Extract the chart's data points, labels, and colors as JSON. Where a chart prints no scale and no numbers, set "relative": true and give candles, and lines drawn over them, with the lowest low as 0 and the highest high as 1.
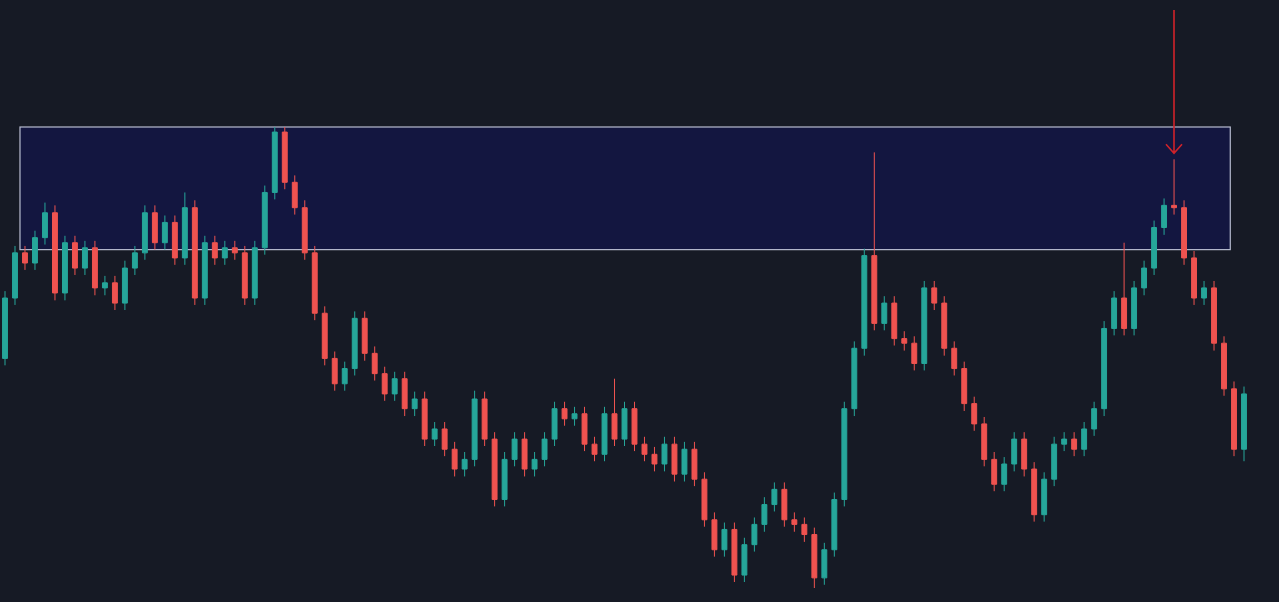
{
  "chart_data": {
    "type": "candlestick",
    "relative": true,
    "categories": [
      null,
      null,
      null,
      null,
      null,
      null,
      null,
      null,
      null,
      null,
      null,
      null,
      null,
      null,
      null,
      null,
      null,
      null,
      null,
      null,
      null,
      null,
      null,
      null,
      null,
      null,
      null,
      null,
      null,
      null,
      null,
      null,
      null,
      null,
      null,
      null,
      null,
      null,
      null,
      null,
      null,
      null,
      null,
      null,
      null,
      null,
      null,
      null,
      null,
      null,
      null,
      null,
      null,
      null,
      null,
      null,
      null,
      null,
      null,
      null,
      null,
      null,
      null,
      null,
      null,
      null,
      null,
      null,
      null,
      null,
      null,
      null,
      null,
      null,
      null,
      null,
      null,
      null,
      null,
      null,
      null,
      null,
      null,
      null,
      null,
      null,
      null,
      null,
      null,
      null,
      null,
      null,
      null,
      null,
      null,
      null,
      null,
      null,
      null,
      null,
      null,
      null,
      null,
      null,
      null,
      null,
      null,
      null,
      null,
      null,
      null,
      null,
      null,
      null,
      null,
      null,
      null,
      null,
      null,
      null,
      null,
      null,
      null,
      null,
      null
    ],
    "ohlc": [
      [
        0.498,
        0.644,
        0.483,
        0.629
      ],
      [
        0.629,
        0.742,
        0.614,
        0.727
      ],
      [
        0.727,
        0.742,
        0.69,
        0.705
      ],
      [
        0.705,
        0.775,
        0.69,
        0.76
      ],
      [
        0.76,
        0.836,
        0.745,
        0.814
      ],
      [
        0.814,
        0.83,
        0.624,
        0.64
      ],
      [
        0.64,
        0.764,
        0.624,
        0.749
      ],
      [
        0.749,
        0.764,
        0.679,
        0.694
      ],
      [
        0.694,
        0.753,
        0.679,
        0.738
      ],
      [
        0.738,
        0.753,
        0.635,
        0.651
      ],
      [
        0.651,
        0.677,
        0.635,
        0.662
      ],
      [
        0.662,
        0.677,
        0.603,
        0.618
      ],
      [
        0.618,
        0.71,
        0.603,
        0.694
      ],
      [
        0.694,
        0.742,
        0.679,
        0.727
      ],
      [
        0.727,
        0.83,
        0.712,
        0.814
      ],
      [
        0.814,
        0.83,
        0.734,
        0.749
      ],
      [
        0.749,
        0.808,
        0.734,
        0.793
      ],
      [
        0.793,
        0.808,
        0.701,
        0.716
      ],
      [
        0.716,
        0.858,
        0.701,
        0.825
      ],
      [
        0.825,
        0.841,
        0.614,
        0.629
      ],
      [
        0.629,
        0.764,
        0.614,
        0.749
      ],
      [
        0.749,
        0.764,
        0.701,
        0.716
      ],
      [
        0.716,
        0.753,
        0.701,
        0.738
      ],
      [
        0.738,
        0.753,
        0.712,
        0.727
      ],
      [
        0.727,
        0.742,
        0.614,
        0.629
      ],
      [
        0.629,
        0.753,
        0.614,
        0.738
      ],
      [
        0.738,
        0.873,
        0.723,
        0.858
      ],
      [
        0.858,
        1.0,
        0.843,
        0.989
      ],
      [
        0.989,
        1.0,
        0.865,
        0.88
      ],
      [
        0.88,
        0.895,
        0.81,
        0.825
      ],
      [
        0.825,
        0.841,
        0.712,
        0.727
      ],
      [
        0.727,
        0.742,
        0.581,
        0.596
      ],
      [
        0.596,
        0.611,
        0.483,
        0.498
      ],
      [
        0.498,
        0.513,
        0.428,
        0.443
      ],
      [
        0.443,
        0.491,
        0.428,
        0.476
      ],
      [
        0.476,
        0.6,
        0.461,
        0.585
      ],
      [
        0.585,
        0.6,
        0.493,
        0.509
      ],
      [
        0.509,
        0.524,
        0.45,
        0.465
      ],
      [
        0.465,
        0.48,
        0.406,
        0.421
      ],
      [
        0.421,
        0.469,
        0.406,
        0.454
      ],
      [
        0.454,
        0.469,
        0.373,
        0.389
      ],
      [
        0.389,
        0.426,
        0.373,
        0.41
      ],
      [
        0.41,
        0.426,
        0.308,
        0.323
      ],
      [
        0.323,
        0.36,
        0.308,
        0.345
      ],
      [
        0.345,
        0.36,
        0.286,
        0.301
      ],
      [
        0.301,
        0.317,
        0.242,
        0.258
      ],
      [
        0.258,
        0.295,
        0.242,
        0.279
      ],
      [
        0.279,
        0.428,
        0.264,
        0.41
      ],
      [
        0.41,
        0.426,
        0.308,
        0.323
      ],
      [
        0.323,
        0.338,
        0.177,
        0.192
      ],
      [
        0.192,
        0.295,
        0.177,
        0.279
      ],
      [
        0.279,
        0.338,
        0.264,
        0.323
      ],
      [
        0.323,
        0.338,
        0.242,
        0.258
      ],
      [
        0.258,
        0.295,
        0.242,
        0.279
      ],
      [
        0.279,
        0.338,
        0.264,
        0.323
      ],
      [
        0.323,
        0.404,
        0.308,
        0.389
      ],
      [
        0.389,
        0.404,
        0.352,
        0.367
      ],
      [
        0.367,
        0.393,
        0.352,
        0.378
      ],
      [
        0.378,
        0.393,
        0.297,
        0.312
      ],
      [
        0.312,
        0.328,
        0.275,
        0.29
      ],
      [
        0.29,
        0.393,
        0.275,
        0.378
      ],
      [
        0.378,
        0.454,
        0.308,
        0.323
      ],
      [
        0.323,
        0.404,
        0.308,
        0.389
      ],
      [
        0.389,
        0.404,
        0.297,
        0.312
      ],
      [
        0.312,
        0.328,
        0.275,
        0.29
      ],
      [
        0.29,
        0.306,
        0.253,
        0.269
      ],
      [
        0.269,
        0.328,
        0.253,
        0.312
      ],
      [
        0.312,
        0.328,
        0.231,
        0.247
      ],
      [
        0.247,
        0.317,
        0.231,
        0.301
      ],
      [
        0.301,
        0.317,
        0.221,
        0.236
      ],
      [
        0.236,
        0.251,
        0.133,
        0.148
      ],
      [
        0.148,
        0.164,
        0.068,
        0.083
      ],
      [
        0.083,
        0.142,
        0.068,
        0.127
      ],
      [
        0.127,
        0.142,
        0.013,
        0.028
      ],
      [
        0.028,
        0.109,
        0.013,
        0.094
      ],
      [
        0.094,
        0.153,
        0.079,
        0.138
      ],
      [
        0.138,
        0.197,
        0.122,
        0.181
      ],
      [
        0.181,
        0.229,
        0.166,
        0.214
      ],
      [
        0.214,
        0.229,
        0.133,
        0.148
      ],
      [
        0.148,
        0.164,
        0.122,
        0.138
      ],
      [
        0.138,
        0.153,
        0.1,
        0.116
      ],
      [
        0.116,
        0.131,
        0.0,
        0.022
      ],
      [
        0.022,
        0.098,
        0.007,
        0.083
      ],
      [
        0.083,
        0.207,
        0.068,
        0.192
      ],
      [
        0.192,
        0.404,
        0.177,
        0.389
      ],
      [
        0.389,
        0.535,
        0.373,
        0.52
      ],
      [
        0.52,
        0.736,
        0.504,
        0.721
      ],
      [
        0.721,
        0.945,
        0.559,
        0.574
      ],
      [
        0.574,
        0.633,
        0.559,
        0.618
      ],
      [
        0.618,
        0.633,
        0.526,
        0.541
      ],
      [
        0.541,
        0.557,
        0.515,
        0.531
      ],
      [
        0.531,
        0.546,
        0.472,
        0.487
      ],
      [
        0.487,
        0.666,
        0.472,
        0.651
      ],
      [
        0.651,
        0.666,
        0.603,
        0.618
      ],
      [
        0.618,
        0.633,
        0.504,
        0.52
      ],
      [
        0.52,
        0.535,
        0.461,
        0.476
      ],
      [
        0.476,
        0.491,
        0.384,
        0.4
      ],
      [
        0.4,
        0.415,
        0.341,
        0.356
      ],
      [
        0.356,
        0.371,
        0.264,
        0.279
      ],
      [
        0.279,
        0.295,
        0.21,
        0.225
      ],
      [
        0.225,
        0.284,
        0.21,
        0.269
      ],
      [
        0.269,
        0.338,
        0.253,
        0.323
      ],
      [
        0.323,
        0.338,
        0.242,
        0.258
      ],
      [
        0.258,
        0.273,
        0.144,
        0.159
      ],
      [
        0.159,
        0.251,
        0.144,
        0.236
      ],
      [
        0.236,
        0.328,
        0.221,
        0.312
      ],
      [
        0.312,
        0.338,
        0.297,
        0.323
      ],
      [
        0.323,
        0.338,
        0.286,
        0.301
      ],
      [
        0.301,
        0.36,
        0.286,
        0.345
      ],
      [
        0.345,
        0.404,
        0.33,
        0.389
      ],
      [
        0.389,
        0.579,
        0.373,
        0.563
      ],
      [
        0.563,
        0.644,
        0.548,
        0.629
      ],
      [
        0.629,
        0.749,
        0.548,
        0.563
      ],
      [
        0.563,
        0.666,
        0.548,
        0.651
      ],
      [
        0.651,
        0.71,
        0.635,
        0.694
      ],
      [
        0.694,
        0.797,
        0.679,
        0.782
      ],
      [
        0.782,
        0.845,
        0.766,
        0.83
      ],
      [
        0.83,
        0.93,
        0.81,
        0.825
      ],
      [
        0.825,
        0.841,
        0.701,
        0.716
      ],
      [
        0.716,
        0.731,
        0.614,
        0.629
      ],
      [
        0.629,
        0.666,
        0.614,
        0.651
      ],
      [
        0.651,
        0.666,
        0.515,
        0.531
      ],
      [
        0.531,
        0.546,
        0.417,
        0.432
      ],
      [
        0.432,
        0.448,
        0.286,
        0.301
      ],
      [
        0.301,
        0.437,
        0.275,
        0.421
      ]
    ],
    "bands": [
      {
        "axis": "y",
        "from": 0.734,
        "to": 1.0,
        "color": "#131640"
      }
    ]
  }
}
